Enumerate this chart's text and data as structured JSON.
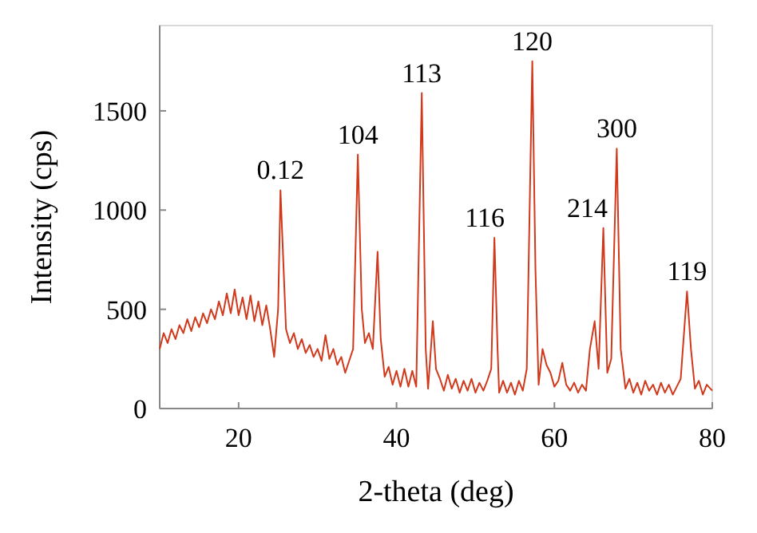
{
  "chart_data": {
    "type": "line",
    "xlabel": "2-theta (deg)",
    "ylabel": "Intensity (cps)",
    "xlim": [
      10,
      80
    ],
    "xticks": [
      20,
      40,
      60,
      80
    ],
    "ylim": [
      0,
      1930
    ],
    "yticks": [
      0,
      500,
      1000,
      1500
    ],
    "grid": false,
    "marker": "none",
    "line_style": "solid",
    "series": [
      {
        "color": "#d0391b",
        "x": [
          10,
          10.5,
          11,
          11.5,
          12,
          12.5,
          13,
          13.5,
          14,
          14.5,
          15,
          15.5,
          16,
          16.5,
          17,
          17.5,
          18,
          18.5,
          19,
          19.5,
          20,
          20.5,
          21,
          21.5,
          22,
          22.5,
          23,
          23.5,
          24,
          24.5,
          25,
          25.3,
          25.7,
          26,
          26.5,
          27,
          27.5,
          28,
          28.5,
          29,
          29.5,
          30,
          30.5,
          31,
          31.5,
          32,
          32.5,
          33,
          33.5,
          34,
          34.5,
          35.1,
          35.6,
          36,
          36.5,
          37,
          37.6,
          38,
          38.5,
          39,
          39.5,
          40,
          40.5,
          41,
          41.5,
          42,
          42.5,
          43.2,
          43.7,
          44,
          44.6,
          45,
          45.5,
          46,
          46.5,
          47,
          47.5,
          48,
          48.5,
          49,
          49.5,
          50,
          50.5,
          51,
          51.5,
          52,
          52.4,
          52.8,
          53,
          53.5,
          54,
          54.5,
          55,
          55.5,
          56,
          56.5,
          57.2,
          57.6,
          58,
          58.5,
          59,
          59.5,
          60,
          60.5,
          61,
          61.5,
          62,
          62.5,
          63,
          63.5,
          64,
          64.5,
          65.1,
          65.6,
          66.2,
          66.7,
          67.2,
          67.9,
          68.4,
          69,
          69.5,
          70,
          70.5,
          71,
          71.5,
          72,
          72.5,
          73,
          73.5,
          74,
          74.5,
          75,
          75.5,
          76,
          76.8,
          77.3,
          77.8,
          78.3,
          78.8,
          79.3,
          80
        ],
        "values": [
          300,
          380,
          330,
          400,
          350,
          420,
          380,
          450,
          390,
          460,
          410,
          480,
          430,
          500,
          450,
          540,
          470,
          580,
          480,
          600,
          470,
          560,
          450,
          570,
          440,
          540,
          420,
          520,
          400,
          260,
          500,
          1100,
          700,
          400,
          330,
          380,
          300,
          350,
          280,
          320,
          260,
          300,
          240,
          370,
          250,
          300,
          220,
          260,
          180,
          240,
          300,
          1280,
          500,
          330,
          380,
          300,
          790,
          350,
          160,
          210,
          120,
          190,
          110,
          200,
          110,
          190,
          110,
          1590,
          300,
          100,
          440,
          200,
          150,
          90,
          170,
          100,
          150,
          80,
          140,
          90,
          150,
          80,
          130,
          90,
          140,
          200,
          860,
          300,
          80,
          140,
          80,
          130,
          70,
          140,
          90,
          200,
          1750,
          700,
          120,
          300,
          220,
          180,
          110,
          140,
          230,
          120,
          90,
          130,
          80,
          120,
          90,
          300,
          440,
          200,
          910,
          180,
          250,
          1310,
          300,
          100,
          150,
          80,
          130,
          70,
          140,
          90,
          120,
          70,
          130,
          80,
          120,
          70,
          110,
          150,
          590,
          300,
          100,
          140,
          70,
          120,
          90
        ]
      }
    ],
    "annotations": [
      {
        "text": "0.12",
        "x": 25.3,
        "y": 1100
      },
      {
        "text": "104",
        "x": 35.1,
        "y": 1280
      },
      {
        "text": "113",
        "x": 43.2,
        "y": 1590
      },
      {
        "text": "116",
        "x": 52.4,
        "y": 860
      },
      {
        "text": "120",
        "x": 57.2,
        "y": 1750
      },
      {
        "text": "214",
        "x": 66.2,
        "y": 910
      },
      {
        "text": "300",
        "x": 67.9,
        "y": 1310
      },
      {
        "text": "119",
        "x": 76.8,
        "y": 590
      }
    ]
  }
}
